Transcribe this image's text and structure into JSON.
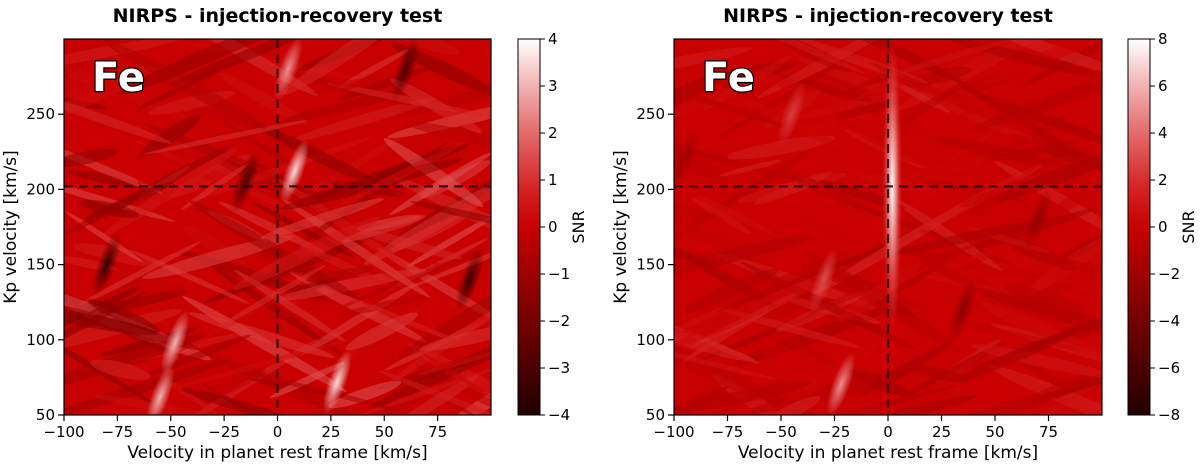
{
  "chart_data": [
    {
      "type": "heatmap",
      "title": "NIRPS - injection-recovery test",
      "annotation": "Fe",
      "xlabel": "Velocity in planet rest frame [km/s]",
      "ylabel": "Kp velocity [km/s]",
      "xlim": [
        -100,
        100
      ],
      "ylim": [
        50,
        300
      ],
      "xticks": [
        -100,
        -75,
        -50,
        -25,
        0,
        25,
        50,
        75
      ],
      "yticks": [
        50,
        100,
        150,
        200,
        250
      ],
      "colorbar": {
        "label": "SNR",
        "vmin": -4,
        "vmax": 4,
        "ticks": [
          -4,
          -3,
          -2,
          -1,
          0,
          1,
          2,
          3,
          4
        ]
      },
      "reference_lines": {
        "x": 0,
        "y": 202
      },
      "bright_spots": [
        {
          "x": 8,
          "y": 212,
          "snr": 3.5
        },
        {
          "x": -48,
          "y": 98,
          "snr": 3.0
        },
        {
          "x": 28,
          "y": 72,
          "snr": 3.5
        },
        {
          "x": -55,
          "y": 62,
          "snr": 3.0
        },
        {
          "x": 5,
          "y": 280,
          "snr": 2.5
        }
      ],
      "dark_spots": [
        {
          "x": -80,
          "y": 150,
          "snr": -3.5
        },
        {
          "x": 90,
          "y": 140,
          "snr": -3.5
        },
        {
          "x": -15,
          "y": 205,
          "snr": -3.0
        },
        {
          "x": 60,
          "y": 280,
          "snr": -3.0
        }
      ]
    },
    {
      "type": "heatmap",
      "title": "NIRPS - injection-recovery test",
      "annotation": "Fe",
      "xlabel": "Velocity in planet rest frame [km/s]",
      "ylabel": "Kp velocity [km/s]",
      "xlim": [
        -100,
        100
      ],
      "ylim": [
        50,
        300
      ],
      "xticks": [
        -100,
        -75,
        -50,
        -25,
        0,
        25,
        50,
        75
      ],
      "yticks": [
        50,
        100,
        150,
        200,
        250
      ],
      "colorbar": {
        "label": "SNR",
        "vmin": -8,
        "vmax": 8,
        "ticks": [
          -8,
          -6,
          -4,
          -2,
          0,
          2,
          4,
          6,
          8
        ]
      },
      "reference_lines": {
        "x": 0,
        "y": 202
      },
      "peak": {
        "x": 2,
        "y": 202,
        "snr": 7.5
      },
      "bright_spots": [
        {
          "x": -22,
          "y": 70,
          "snr": 5.0
        },
        {
          "x": -30,
          "y": 140,
          "snr": 3.0
        },
        {
          "x": -45,
          "y": 250,
          "snr": 2.5
        }
      ],
      "dark_spots": [
        {
          "x": 35,
          "y": 120,
          "snr": -3.0
        },
        {
          "x": 70,
          "y": 180,
          "snr": -2.5
        },
        {
          "x": -95,
          "y": 220,
          "snr": -2.0
        }
      ]
    }
  ]
}
